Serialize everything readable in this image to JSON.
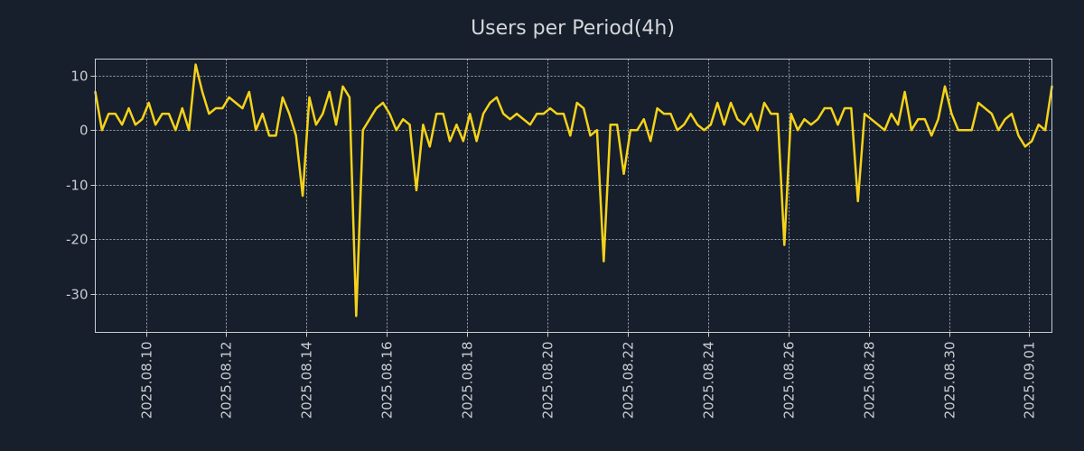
{
  "chart_data": {
    "type": "line",
    "title": "Users per Period(4h)",
    "xlabel": "",
    "ylabel": "",
    "ylim": [
      -37,
      13
    ],
    "y_ticks": [
      10,
      0,
      -10,
      -20,
      -30
    ],
    "y_tick_labels": [
      "10",
      "0",
      "-10",
      "-20",
      "-30"
    ],
    "x_tick_labels": [
      "2025.08.10",
      "2025.08.12",
      "2025.08.14",
      "2025.08.16",
      "2025.08.18",
      "2025.08.20",
      "2025.08.22",
      "2025.08.24",
      "2025.08.26",
      "2025.08.28",
      "2025.08.30",
      "2025.09.01"
    ],
    "grid": true,
    "line_color": "#f5d21a",
    "series": [
      {
        "name": "Users per Period(4h)",
        "values": [
          7,
          0,
          3,
          3,
          1,
          4,
          1,
          2,
          5,
          1,
          3,
          3,
          0,
          4,
          0,
          12,
          7,
          3,
          4,
          4,
          6,
          5,
          4,
          7,
          0,
          3,
          -1,
          -1,
          6,
          3,
          -1,
          -12,
          6,
          1,
          3,
          7,
          1,
          8,
          6,
          -34,
          0,
          2,
          4,
          5,
          3,
          0,
          2,
          1,
          -11,
          1,
          -3,
          3,
          3,
          -2,
          1,
          -2,
          3,
          -2,
          3,
          5,
          6,
          3,
          2,
          3,
          2,
          1,
          3,
          3,
          4,
          3,
          3,
          -1,
          5,
          4,
          -1,
          0,
          -24,
          1,
          1,
          -8,
          0,
          0,
          2,
          -2,
          4,
          3,
          3,
          0,
          1,
          3,
          1,
          0,
          1,
          5,
          1,
          5,
          2,
          1,
          3,
          0,
          5,
          3,
          3,
          -21,
          3,
          0,
          2,
          1,
          2,
          4,
          4,
          1,
          4,
          4,
          -13,
          3,
          2,
          1,
          0,
          3,
          1,
          7,
          0,
          2,
          2,
          -1,
          2,
          8,
          3,
          0,
          0,
          0,
          5,
          4,
          3,
          0,
          2,
          3,
          -1,
          -3,
          -2,
          1,
          0,
          8
        ]
      }
    ]
  }
}
